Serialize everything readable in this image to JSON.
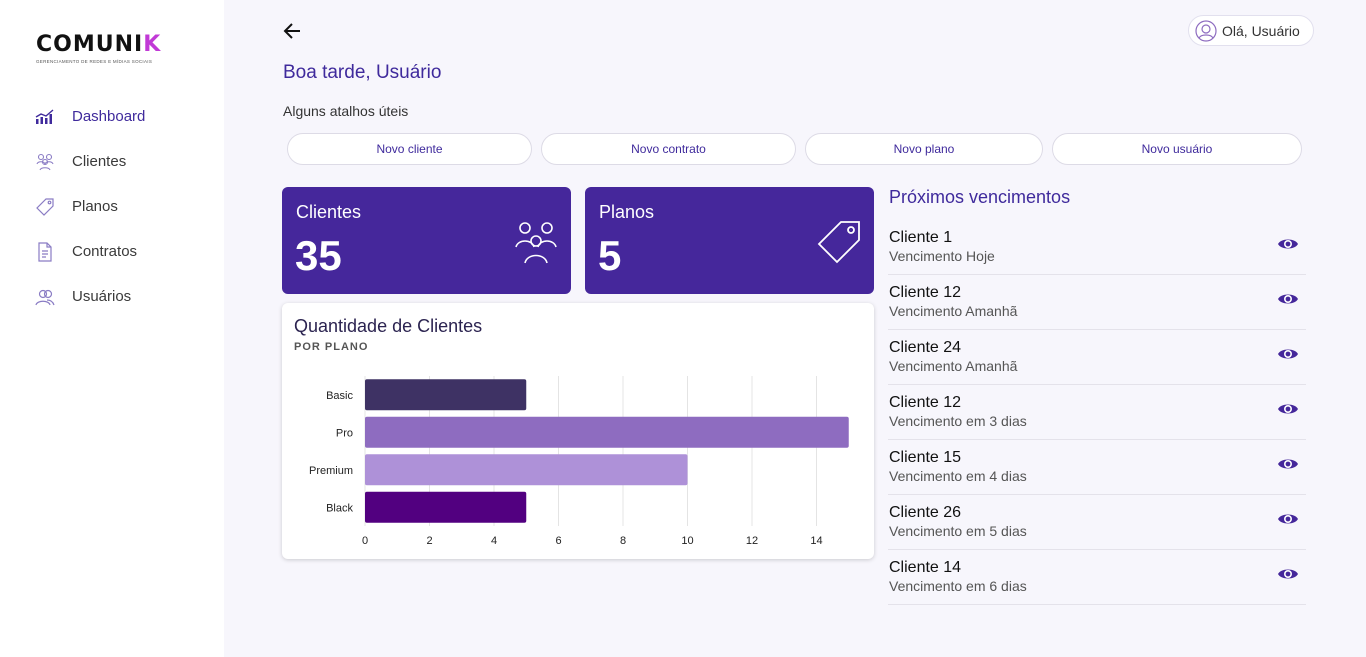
{
  "brand": {
    "logo_text": "COMUNI",
    "logo_accent": "K",
    "tagline": "GERENCIAMENTO DE REDES E MÍDIAS SOCIAIS",
    "accent_color": "#45279b"
  },
  "sidebar": {
    "items": [
      {
        "label": "Dashboard",
        "icon": "chart-icon",
        "active": true
      },
      {
        "label": "Clientes",
        "icon": "people-icon",
        "active": false
      },
      {
        "label": "Planos",
        "icon": "tag-icon",
        "active": false
      },
      {
        "label": "Contratos",
        "icon": "document-icon",
        "active": false
      },
      {
        "label": "Usuários",
        "icon": "users-icon",
        "active": false
      }
    ]
  },
  "header": {
    "greeting": "Boa tarde, Usuário",
    "user_chip": "Olá, Usuário",
    "back_icon": "arrow-left-icon"
  },
  "shortcuts": {
    "title": "Alguns atalhos úteis",
    "items": [
      {
        "label": "Novo cliente"
      },
      {
        "label": "Novo contrato"
      },
      {
        "label": "Novo plano"
      },
      {
        "label": "Novo usuário"
      }
    ]
  },
  "stats": [
    {
      "title": "Clientes",
      "value": "35",
      "icon": "people-icon"
    },
    {
      "title": "Planos",
      "value": "5",
      "icon": "tag-icon"
    }
  ],
  "chart": {
    "title": "Quantidade de Clientes",
    "subtitle": "POR PLANO"
  },
  "chart_data": {
    "type": "bar",
    "orientation": "horizontal",
    "categories": [
      "Basic",
      "Pro",
      "Premium",
      "Black"
    ],
    "values": [
      5,
      15,
      10,
      5
    ],
    "colors": [
      "#3e3264",
      "#8e6cc0",
      "#ae91d8",
      "#520080"
    ],
    "xlim": [
      0,
      15
    ],
    "xticks": [
      0,
      2,
      4,
      6,
      8,
      10,
      12,
      14
    ],
    "grid": true,
    "title": "Quantidade de Clientes",
    "subtitle": "POR PLANO"
  },
  "upcoming": {
    "title": "Próximos vencimentos",
    "items": [
      {
        "name": "Cliente 1",
        "due": "Vencimento Hoje"
      },
      {
        "name": "Cliente 12",
        "due": "Vencimento Amanhã"
      },
      {
        "name": "Cliente 24",
        "due": "Vencimento Amanhã"
      },
      {
        "name": "Cliente 12",
        "due": "Vencimento em 3 dias"
      },
      {
        "name": "Cliente 15",
        "due": "Vencimento em 4 dias"
      },
      {
        "name": "Cliente 26",
        "due": "Vencimento em 5 dias"
      },
      {
        "name": "Cliente 14",
        "due": "Vencimento em 6 dias"
      }
    ]
  }
}
